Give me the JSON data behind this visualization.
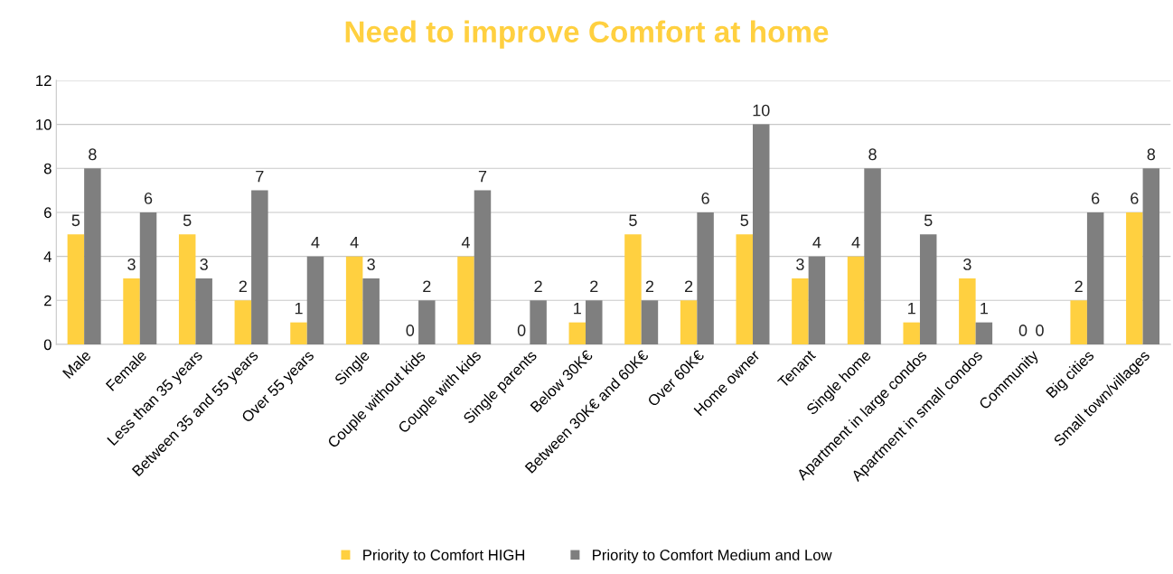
{
  "chart_data": {
    "type": "bar",
    "title": "Need to improve Comfort at home",
    "categories": [
      "Male",
      "Female",
      "Less than 35 years",
      "Between 35 and 55 years",
      "Over 55 years",
      "Single",
      "Couple without kids",
      "Couple with kids",
      "Single parents",
      "Below 30K€",
      "Between 30K€ and 60K€",
      "Over 60K€",
      "Home owner",
      "Tenant",
      "Single home",
      "Apartment in large condos",
      "Apartment in small condos",
      "Community",
      "Big cities",
      "Small town/villages"
    ],
    "series": [
      {
        "name": "Priority to Comfort HIGH",
        "color": "#ffd040",
        "values": [
          5,
          3,
          5,
          2,
          1,
          4,
          0,
          4,
          0,
          1,
          5,
          2,
          5,
          3,
          4,
          1,
          3,
          0,
          2,
          6
        ]
      },
      {
        "name": "Priority to Comfort Medium and Low",
        "color": "#7f7f7f",
        "values": [
          8,
          6,
          3,
          7,
          4,
          3,
          2,
          7,
          2,
          2,
          2,
          6,
          10,
          4,
          8,
          5,
          1,
          0,
          6,
          8
        ]
      }
    ],
    "ylim": [
      0,
      12
    ],
    "yticks": [
      0,
      2,
      4,
      6,
      8,
      10,
      12
    ],
    "grid": "y",
    "legend": "bottom",
    "data_labels": true
  }
}
